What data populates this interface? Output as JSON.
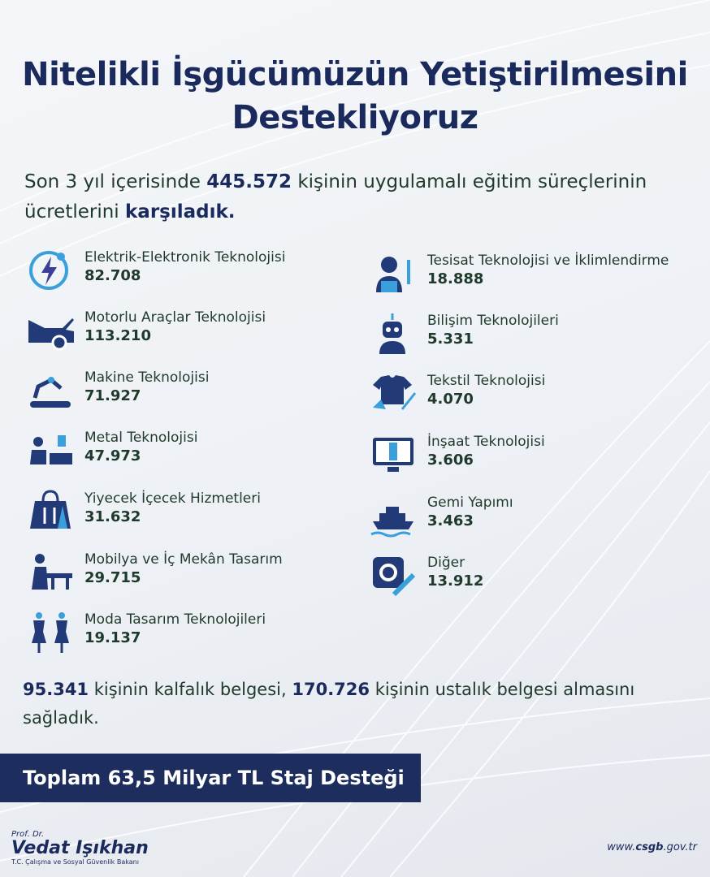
{
  "title": {
    "line1": "Nitelikli İşgücümüzün Yetiştirilmesini",
    "line2": "Destekliyoruz"
  },
  "intro": {
    "p1": "Son 3 yıl içerisinde ",
    "total": "445.572",
    "p2": " kişinin uygulamalı eğitim süreçlerinin ücretlerini ",
    "p3": "karşıladık."
  },
  "left_items": [
    {
      "label": "Elektrik-Elektronik Teknolojisi",
      "value": "82.708",
      "icon": "lightning-icon"
    },
    {
      "label": "Motorlu Araçlar Teknolojisi",
      "value": "113.210",
      "icon": "car-icon"
    },
    {
      "label": "Makine Teknolojisi",
      "value": "71.927",
      "icon": "robot-arm-icon"
    },
    {
      "label": "Metal Teknolojisi",
      "value": "47.973",
      "icon": "metal-worker-icon"
    },
    {
      "label": "Yiyecek İçecek Hizmetleri",
      "value": "31.632",
      "icon": "food-bag-icon"
    },
    {
      "label": "Mobilya ve İç Mekân Tasarım",
      "value": "29.715",
      "icon": "carpenter-icon"
    },
    {
      "label": "Moda Tasarım Teknolojileri",
      "value": "19.137",
      "icon": "mannequin-icon"
    }
  ],
  "right_items": [
    {
      "label": "Tesisat Teknolojisi ve İklimlendirme",
      "value": "18.888",
      "icon": "plumber-icon"
    },
    {
      "label": "Bilişim Teknolojileri",
      "value": "5.331",
      "icon": "robot-icon"
    },
    {
      "label": "Tekstil Teknolojisi",
      "value": "4.070",
      "icon": "tshirt-icon"
    },
    {
      "label": "İnşaat Teknolojisi",
      "value": "3.606",
      "icon": "monitor-construction-icon"
    },
    {
      "label": "Gemi Yapımı",
      "value": "3.463",
      "icon": "ship-icon"
    },
    {
      "label": "Diğer",
      "value": "13.912",
      "icon": "gear-pencil-icon"
    }
  ],
  "summary": {
    "n1": "95.341",
    "t1": " kişinin kalfalık belgesi, ",
    "n2": "170.726",
    "t2": " kişinin ustalık belgesi almasını sağladık."
  },
  "banner": "Toplam 63,5 Milyar TL Staj Desteği",
  "signature": {
    "title": "Prof. Dr.",
    "name": "Vedat Işıkhan",
    "role": "T.C. Çalışma ve Sosyal Güvenlik Bakanı"
  },
  "url": {
    "pre": "www.",
    "bold": "csgb",
    ".post": "",
    "post": ".gov.tr"
  },
  "colors": {
    "navy": "#1c2d5e",
    "text": "#1f3a2c",
    "accent": "#3aa0dc"
  }
}
